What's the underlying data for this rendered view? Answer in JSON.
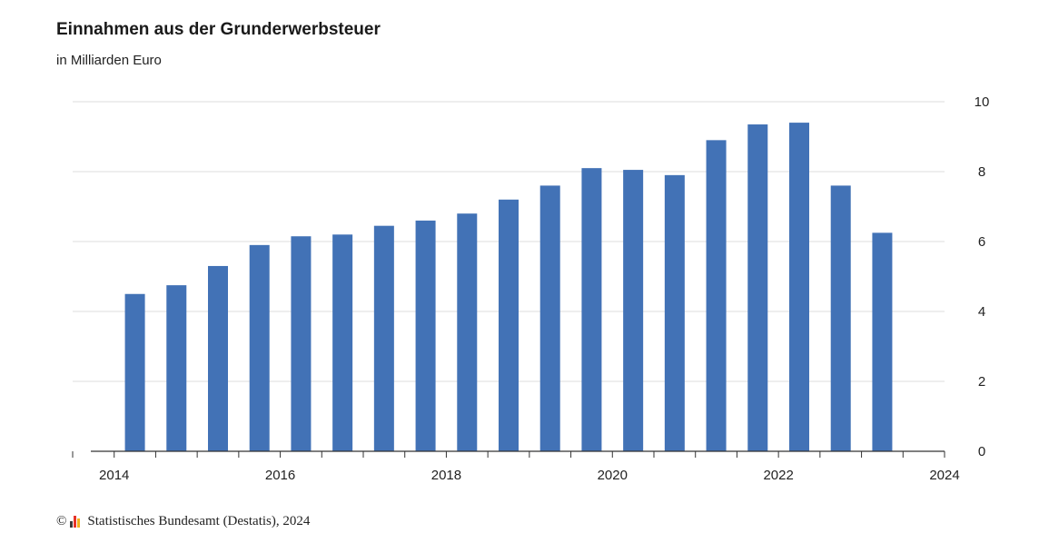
{
  "chart_data": {
    "type": "bar",
    "title": "Einnahmen aus der Grunderwerbsteuer",
    "subtitle": "in Milliarden Euro",
    "xlabel": "",
    "ylabel": "",
    "ylim": [
      0,
      10
    ],
    "yticks": [
      "0",
      "2",
      "4",
      "6",
      "8",
      "10"
    ],
    "xticks": [
      "2014",
      "2016",
      "2018",
      "2020",
      "2022",
      "2024"
    ],
    "x_range": [
      2013.5,
      2024.0
    ],
    "grid": true,
    "y_axis_side": "right",
    "bar_color": "#4272b6",
    "points": [
      {
        "x": 2014.25,
        "y": 4.5
      },
      {
        "x": 2014.75,
        "y": 4.75
      },
      {
        "x": 2015.25,
        "y": 5.3
      },
      {
        "x": 2015.75,
        "y": 5.9
      },
      {
        "x": 2016.25,
        "y": 6.15
      },
      {
        "x": 2016.75,
        "y": 6.2
      },
      {
        "x": 2017.25,
        "y": 6.45
      },
      {
        "x": 2017.75,
        "y": 6.6
      },
      {
        "x": 2018.25,
        "y": 6.8
      },
      {
        "x": 2018.75,
        "y": 7.2
      },
      {
        "x": 2019.25,
        "y": 7.6
      },
      {
        "x": 2019.75,
        "y": 8.1
      },
      {
        "x": 2020.25,
        "y": 8.05
      },
      {
        "x": 2020.75,
        "y": 7.9
      },
      {
        "x": 2021.25,
        "y": 8.9
      },
      {
        "x": 2021.75,
        "y": 9.35
      },
      {
        "x": 2022.25,
        "y": 9.4
      },
      {
        "x": 2022.75,
        "y": 7.6
      },
      {
        "x": 2023.25,
        "y": 6.25
      }
    ]
  },
  "footer": {
    "copyright": "©",
    "source": "Statistisches Bundesamt (Destatis), 2024"
  }
}
